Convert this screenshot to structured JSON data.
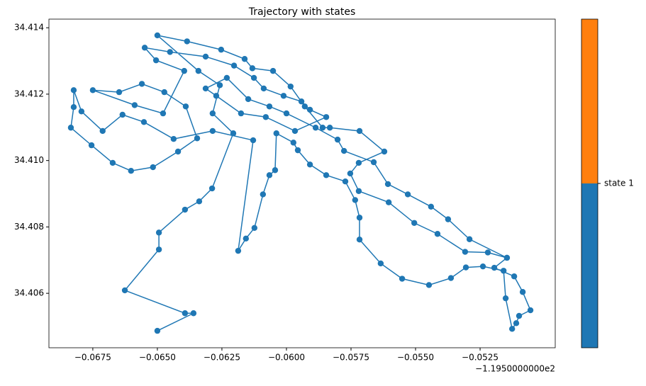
{
  "chart_data": {
    "type": "line",
    "title": "Trajectory with states",
    "x_offset_label": "−1.1950000000e2",
    "xlim": [
      -0.0692,
      -0.04959
    ],
    "ylim": [
      34.40436,
      34.41426
    ],
    "xticks": [
      {
        "value": -0.0675,
        "label": "−0.0675"
      },
      {
        "value": -0.065,
        "label": "−0.0650"
      },
      {
        "value": -0.0625,
        "label": "−0.0625"
      },
      {
        "value": -0.06,
        "label": "−0.0600"
      },
      {
        "value": -0.0575,
        "label": "−0.0575"
      },
      {
        "value": -0.055,
        "label": "−0.0550"
      },
      {
        "value": -0.0525,
        "label": "−0.0525"
      }
    ],
    "yticks": [
      {
        "value": 34.406,
        "label": "34.406"
      },
      {
        "value": 34.408,
        "label": "34.408"
      },
      {
        "value": 34.41,
        "label": "34.410"
      },
      {
        "value": 34.412,
        "label": "34.412"
      },
      {
        "value": 34.414,
        "label": "34.414"
      }
    ],
    "series": [
      {
        "color": "#1f77b4",
        "x": [
          -0.065,
          -0.0636,
          -0.06393,
          -0.06626,
          -0.06494,
          -0.06494,
          -0.06393,
          -0.06338,
          -0.06288,
          -0.06206,
          -0.06286,
          -0.06258,
          -0.06341,
          -0.065,
          -0.06385,
          -0.06253,
          -0.06162,
          -0.06132,
          -0.06052,
          -0.05984,
          -0.05929,
          -0.0586,
          -0.05832,
          -0.05717,
          -0.05621,
          -0.0572,
          -0.05753,
          -0.0572,
          -0.05604,
          -0.05505,
          -0.05415,
          -0.05308,
          -0.0522,
          -0.05146,
          -0.05195,
          -0.05118,
          -0.05085,
          -0.05055,
          -0.05099,
          -0.0511,
          -0.05126,
          -0.05151,
          -0.05159,
          -0.05239,
          -0.05305,
          -0.05363,
          -0.05448,
          -0.05552,
          -0.05635,
          -0.05717,
          -0.05717,
          -0.05734,
          -0.05772,
          -0.05846,
          -0.05909,
          -0.05956,
          -0.05973,
          -0.06039,
          -0.06044,
          -0.06066,
          -0.06091,
          -0.06124,
          -0.06157,
          -0.06187,
          -0.06129,
          -0.06286,
          -0.06437,
          -0.06552,
          -0.06635,
          -0.06712,
          -0.06794,
          -0.06824,
          -0.06824,
          -0.06835,
          -0.06755,
          -0.06673,
          -0.06602,
          -0.06517,
          -0.0642,
          -0.06346,
          -0.0639,
          -0.06473,
          -0.0656,
          -0.06648,
          -0.0675,
          -0.06588,
          -0.06478,
          -0.06396,
          -0.06505,
          -0.06549,
          -0.06451,
          -0.06313,
          -0.06203,
          -0.06126,
          -0.06088,
          -0.06011,
          -0.05942,
          -0.05909,
          -0.05846,
          -0.05967,
          -0.0608,
          -0.06176,
          -0.06272,
          -0.06313,
          -0.06231,
          -0.06148,
          -0.06066,
          -0.06,
          -0.05887,
          -0.05802,
          -0.05777,
          -0.05662,
          -0.05607,
          -0.0553,
          -0.0544,
          -0.05374,
          -0.05291,
          -0.05146
        ],
        "y": [
          34.40487,
          34.4054,
          34.4054,
          34.40609,
          34.40732,
          34.40783,
          34.40852,
          34.40877,
          34.40916,
          34.41082,
          34.41142,
          34.41227,
          34.4127,
          34.41377,
          34.41359,
          34.41334,
          34.41306,
          34.41278,
          34.4127,
          34.41223,
          34.41163,
          34.41099,
          34.41099,
          34.41089,
          34.41027,
          34.40993,
          34.40961,
          34.40908,
          34.40874,
          34.40812,
          34.40779,
          34.40725,
          34.40723,
          34.40707,
          34.40677,
          34.40651,
          34.40604,
          34.40549,
          34.40532,
          34.4051,
          34.40493,
          34.40585,
          34.40668,
          34.40681,
          34.40678,
          34.40646,
          34.40625,
          34.40644,
          34.4069,
          34.40762,
          34.40828,
          34.40881,
          34.40937,
          34.40956,
          34.40988,
          34.41031,
          34.41054,
          34.41082,
          34.40971,
          34.40956,
          34.40898,
          34.40797,
          34.40765,
          34.40728,
          34.41061,
          34.41089,
          34.41065,
          34.41116,
          34.41138,
          34.41089,
          34.41148,
          34.41212,
          34.41161,
          34.41099,
          34.41046,
          34.40993,
          34.40969,
          34.4098,
          34.41027,
          34.41067,
          34.41163,
          34.41206,
          34.41231,
          34.41206,
          34.41212,
          34.41167,
          34.41142,
          34.4127,
          34.41302,
          34.4134,
          34.41327,
          34.41313,
          34.41286,
          34.41249,
          34.41217,
          34.41195,
          34.41178,
          34.41153,
          34.41131,
          34.41089,
          34.41131,
          34.41142,
          34.41195,
          34.41217,
          34.41249,
          34.41185,
          34.41163,
          34.41142,
          34.41099,
          34.41063,
          34.41029,
          34.40995,
          34.40929,
          34.40898,
          34.40861,
          34.40823,
          34.40763,
          34.40707
        ]
      }
    ],
    "colorbar": {
      "lim": [
        0,
        1
      ],
      "colors": [
        "#1f77b4",
        "#ff7f0e"
      ],
      "ticks": [
        {
          "value": 0.5,
          "label": "state 1"
        }
      ]
    }
  }
}
